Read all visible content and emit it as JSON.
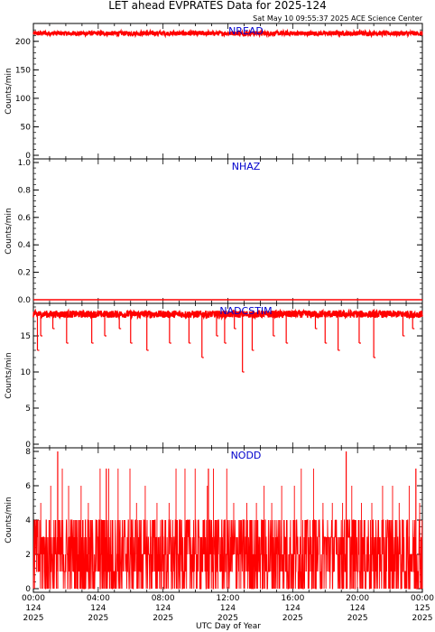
{
  "title": "LET ahead EVPRATES Data for 2025-124",
  "timestamp": "Sat May 10 09:55:37 2025 ACE Science Center",
  "x_axis_label": "UTC Day of Year",
  "colors": {
    "series": "#ff0000",
    "panel_label": "#0000cc",
    "axes": "#000000",
    "background": "#ffffff"
  },
  "x_ticks": [
    {
      "time": "00:00",
      "day": "124",
      "year": "2025"
    },
    {
      "time": "04:00",
      "day": "124",
      "year": "2025"
    },
    {
      "time": "08:00",
      "day": "124",
      "year": "2025"
    },
    {
      "time": "12:00",
      "day": "124",
      "year": "2025"
    },
    {
      "time": "16:00",
      "day": "124",
      "year": "2025"
    },
    {
      "time": "20:00",
      "day": "124",
      "year": "2025"
    },
    {
      "time": "00:00",
      "day": "125",
      "year": "2025"
    }
  ],
  "chart_data": [
    {
      "type": "line",
      "series_name": "NREAD",
      "ylabel": "Counts/min",
      "ylim": [
        0,
        225
      ],
      "yticks": [
        0,
        50,
        100,
        150,
        200
      ],
      "x_range_hours": [
        0,
        24
      ],
      "description": "dense 1-minute data, values ~210-218",
      "segments": [
        {
          "from_h": 0.0,
          "to_h": 24.0,
          "level": 214,
          "noise": 4
        }
      ],
      "dips": []
    },
    {
      "type": "line",
      "series_name": "NHAZ",
      "ylabel": "Counts/min",
      "ylim": [
        0,
        1.0
      ],
      "yticks": [
        0.0,
        0.2,
        0.4,
        0.6,
        0.8,
        1.0
      ],
      "x_range_hours": [
        0,
        24
      ],
      "segments": [
        {
          "from_h": 0.0,
          "to_h": 24.0,
          "level": 0,
          "noise": 0
        }
      ],
      "dips": []
    },
    {
      "type": "line",
      "series_name": "NADCSTIM",
      "ylabel": "Counts/min",
      "ylim": [
        0,
        19
      ],
      "yticks": [
        0,
        5,
        10,
        15
      ],
      "x_range_hours": [
        0,
        24
      ],
      "segments": [
        {
          "from_h": 0.0,
          "to_h": 24.0,
          "level": 18,
          "noise": 0.5
        }
      ],
      "dips": [
        {
          "h": 0.25,
          "value": 13
        },
        {
          "h": 0.45,
          "value": 15
        },
        {
          "h": 1.2,
          "value": 16
        },
        {
          "h": 2.05,
          "value": 14
        },
        {
          "h": 3.6,
          "value": 14
        },
        {
          "h": 4.4,
          "value": 15
        },
        {
          "h": 5.3,
          "value": 16
        },
        {
          "h": 6.0,
          "value": 14
        },
        {
          "h": 7.0,
          "value": 13
        },
        {
          "h": 8.4,
          "value": 14
        },
        {
          "h": 9.6,
          "value": 14
        },
        {
          "h": 10.4,
          "value": 12
        },
        {
          "h": 11.3,
          "value": 15
        },
        {
          "h": 11.8,
          "value": 14
        },
        {
          "h": 12.4,
          "value": 16
        },
        {
          "h": 12.9,
          "value": 10
        },
        {
          "h": 13.5,
          "value": 13
        },
        {
          "h": 14.8,
          "value": 15
        },
        {
          "h": 15.6,
          "value": 14
        },
        {
          "h": 17.4,
          "value": 16
        },
        {
          "h": 18.0,
          "value": 14
        },
        {
          "h": 18.8,
          "value": 13
        },
        {
          "h": 20.1,
          "value": 14
        },
        {
          "h": 21.0,
          "value": 12
        },
        {
          "h": 22.8,
          "value": 15
        },
        {
          "h": 23.4,
          "value": 16
        }
      ]
    },
    {
      "type": "line",
      "series_name": "NODD",
      "ylabel": "Counts/min",
      "ylim": [
        0,
        8
      ],
      "yticks": [
        0,
        2,
        4,
        6,
        8
      ],
      "x_range_hours": [
        0,
        24
      ],
      "description": "dense integer counts, mostly 0-4 with spikes to 7-8",
      "segments": [
        {
          "from_h": 0.0,
          "to_h": 24.0,
          "level": 2,
          "noise": 2
        }
      ],
      "dips": [],
      "spikes": [
        {
          "h": 1.5,
          "value": 8
        },
        {
          "h": 4.5,
          "value": 7
        },
        {
          "h": 10.8,
          "value": 7
        },
        {
          "h": 19.3,
          "value": 8
        },
        {
          "h": 23.6,
          "value": 7
        }
      ]
    }
  ]
}
